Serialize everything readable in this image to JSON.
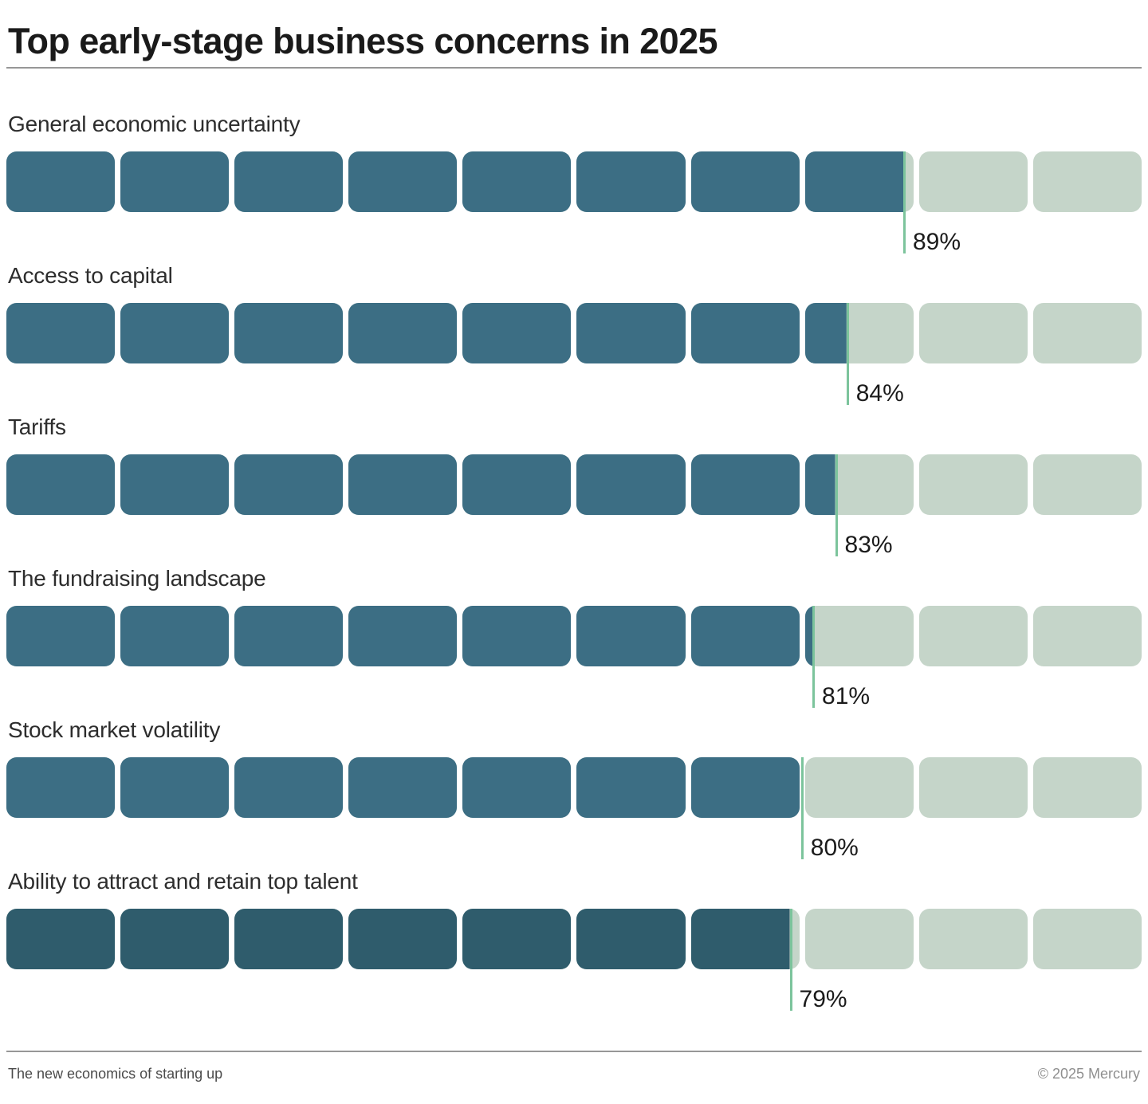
{
  "title": "Top early-stage business concerns in 2025",
  "footer": {
    "left": "The new economics of starting up",
    "right": "© 2025 Mercury"
  },
  "colors": {
    "fill_teal": "#3c6e84",
    "fill_teal_dark": "#2f5c6c",
    "track_green": "#c5d5c9",
    "marker_green": "#7cc49c",
    "divider_gray": "#979797",
    "value_text": "#1b1b1b",
    "label_text": "#2d2d2d",
    "title_text": "#1a1a1a"
  },
  "chart_data": {
    "type": "bar",
    "orientation": "horizontal",
    "title": "Top early-stage business concerns in 2025",
    "unit": "percent",
    "segments_per_bar": 10,
    "xlim": [
      0,
      100
    ],
    "grid": false,
    "legend": false,
    "categories": [
      "General economic uncertainty",
      "Access to capital",
      "Tariffs",
      "The fundraising landscape",
      "Stock market volatility",
      "Ability to attract and retain top talent"
    ],
    "values": [
      89,
      84,
      83,
      81,
      80,
      79
    ],
    "bars": [
      {
        "label": "General economic uncertainty",
        "value": 89,
        "value_label": "89%",
        "fill_percent": 79,
        "fill_color": "#3c6e84"
      },
      {
        "label": "Access to capital",
        "value": 84,
        "value_label": "84%",
        "fill_percent": 74,
        "fill_color": "#3c6e84"
      },
      {
        "label": "Tariffs",
        "value": 83,
        "value_label": "83%",
        "fill_percent": 73,
        "fill_color": "#3c6e84"
      },
      {
        "label": "The fundraising landscape",
        "value": 81,
        "value_label": "81%",
        "fill_percent": 71,
        "fill_color": "#3c6e84"
      },
      {
        "label": "Stock market volatility",
        "value": 80,
        "value_label": "80%",
        "fill_percent": 70,
        "fill_color": "#3c6e84"
      },
      {
        "label": "Ability to attract and retain top talent",
        "value": 79,
        "value_label": "79%",
        "fill_percent": 69,
        "fill_color": "#2f5c6c"
      }
    ]
  }
}
